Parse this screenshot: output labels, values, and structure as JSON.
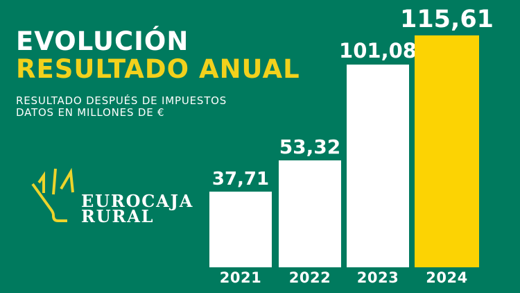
{
  "title": {
    "line1": "EVOLUCIÓN",
    "line2": "RESULTADO ANUAL"
  },
  "subtitle": {
    "line1": "RESULTADO DESPUÉS DE IMPUESTOS",
    "line2": "DATOS EN MILLONES DE €"
  },
  "logo": {
    "line1": "EUROCAJA",
    "line2": "RURAL"
  },
  "colors": {
    "background": "#007A5E",
    "title_line1": "#FFFFFF",
    "title_line2": "#F2D11C",
    "subtitle_text": "#FFFFFF",
    "logo_mark": "#EDD42B",
    "logo_text": "#FFFFFF",
    "bar_default": "#FFFFFF",
    "bar_highlight": "#FCD303",
    "label_text": "#FFFFFF"
  },
  "chart_data": {
    "type": "bar",
    "title": "EVOLUCIÓN RESULTADO ANUAL",
    "note": "RESULTADO DESPUÉS DE IMPUESTOS, DATOS EN MILLONES DE €",
    "categories": [
      "2021",
      "2022",
      "2023",
      "2024"
    ],
    "values": [
      37.71,
      53.32,
      101.08,
      115.61
    ],
    "value_labels": [
      "37,71",
      "53,32",
      "101,08",
      "115,61"
    ],
    "unit": "millones de €",
    "ylim": [
      0,
      120
    ],
    "grid": false,
    "legend": false,
    "highlight_index": 3,
    "bar_color_default": "#FFFFFF",
    "bar_color_highlight": "#FCD303"
  }
}
